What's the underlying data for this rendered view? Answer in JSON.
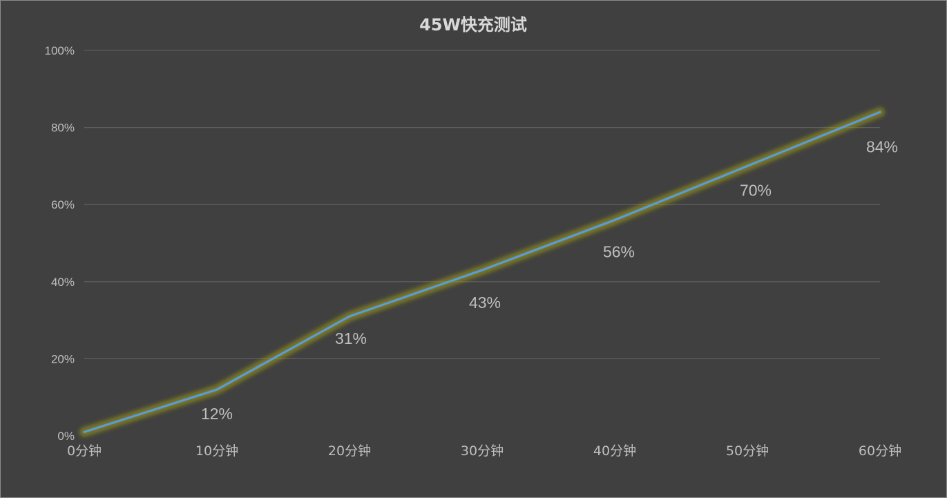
{
  "chart_data": {
    "type": "line",
    "title": "45W快充测试",
    "xlabel": "",
    "ylabel": "",
    "categories": [
      "0分钟",
      "10分钟",
      "20分钟",
      "30分钟",
      "40分钟",
      "50分钟",
      "60分钟"
    ],
    "series": [
      {
        "values": [
          1,
          12,
          31,
          43,
          56,
          70,
          84
        ],
        "data_labels": [
          "",
          "12%",
          "31%",
          "43%",
          "56%",
          "70%",
          "84%"
        ]
      }
    ],
    "ylim": [
      0,
      100
    ],
    "yticks": [
      "0%",
      "20%",
      "40%",
      "60%",
      "80%",
      "100%"
    ],
    "grid": true,
    "legend": "none",
    "colors": {
      "background": "#404040",
      "line": "#5b9bd5",
      "glow": "#a3a11a",
      "text": "#bfbfbf",
      "title": "#d9d9d9",
      "gridline": "#5e5e5e"
    }
  }
}
